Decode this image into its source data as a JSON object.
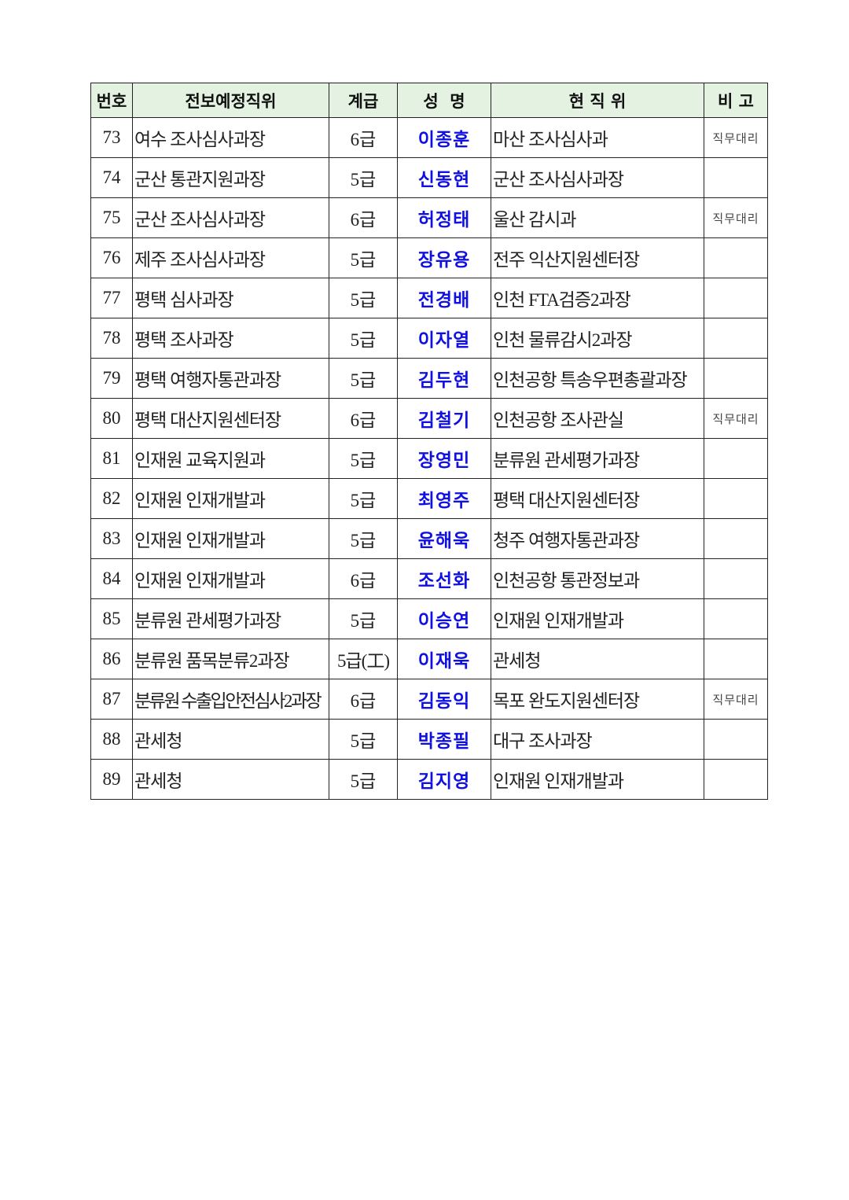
{
  "table": {
    "headers": {
      "no": "번호",
      "new_position": "전보예정직위",
      "grade": "계급",
      "name": "성  명",
      "current_position": "현 직 위",
      "note": "비 고"
    },
    "header_bg": "#e3f2e1",
    "name_color": "#1010e0",
    "rows": [
      {
        "no": "73",
        "new_position": "여수 조사심사과장",
        "grade": "6급",
        "name": "이종훈",
        "current_position": "마산 조사심사과",
        "note": "직무대리"
      },
      {
        "no": "74",
        "new_position": "군산 통관지원과장",
        "grade": "5급",
        "name": "신동현",
        "current_position": "군산 조사심사과장",
        "note": ""
      },
      {
        "no": "75",
        "new_position": "군산 조사심사과장",
        "grade": "6급",
        "name": "허정태",
        "current_position": "울산 감시과",
        "note": "직무대리"
      },
      {
        "no": "76",
        "new_position": "제주 조사심사과장",
        "grade": "5급",
        "name": "장유용",
        "current_position": "전주 익산지원센터장",
        "note": ""
      },
      {
        "no": "77",
        "new_position": "평택 심사과장",
        "grade": "5급",
        "name": "전경배",
        "current_position": "인천 FTA검증2과장",
        "note": ""
      },
      {
        "no": "78",
        "new_position": "평택 조사과장",
        "grade": "5급",
        "name": "이자열",
        "current_position": "인천 물류감시2과장",
        "note": ""
      },
      {
        "no": "79",
        "new_position": "평택 여행자통관과장",
        "grade": "5급",
        "name": "김두현",
        "current_position": "인천공항 특송우편총괄과장",
        "note": ""
      },
      {
        "no": "80",
        "new_position": "평택 대산지원센터장",
        "grade": "6급",
        "name": "김철기",
        "current_position": "인천공항 조사관실",
        "note": "직무대리"
      },
      {
        "no": "81",
        "new_position": "인재원 교육지원과",
        "grade": "5급",
        "name": "장영민",
        "current_position": "분류원 관세평가과장",
        "note": ""
      },
      {
        "no": "82",
        "new_position": "인재원 인재개발과",
        "grade": "5급",
        "name": "최영주",
        "current_position": "평택 대산지원센터장",
        "note": ""
      },
      {
        "no": "83",
        "new_position": "인재원 인재개발과",
        "grade": "5급",
        "name": "윤해욱",
        "current_position": "청주 여행자통관과장",
        "note": ""
      },
      {
        "no": "84",
        "new_position": "인재원 인재개발과",
        "grade": "6급",
        "name": "조선화",
        "current_position": "인천공항 통관정보과",
        "note": ""
      },
      {
        "no": "85",
        "new_position": "분류원 관세평가과장",
        "grade": "5급",
        "name": "이승연",
        "current_position": "인재원 인재개발과",
        "note": ""
      },
      {
        "no": "86",
        "new_position": "분류원 품목분류2과장",
        "grade": "5급(工)",
        "name": "이재욱",
        "current_position": "관세청",
        "note": ""
      },
      {
        "no": "87",
        "new_position": "분류원 수출입안전심사2과장",
        "grade": "6급",
        "name": "김동익",
        "current_position": "목포 완도지원센터장",
        "note": "직무대리"
      },
      {
        "no": "88",
        "new_position": "관세청",
        "grade": "5급",
        "name": "박종필",
        "current_position": "대구 조사과장",
        "note": ""
      },
      {
        "no": "89",
        "new_position": "관세청",
        "grade": "5급",
        "name": "김지영",
        "current_position": "인재원 인재개발과",
        "note": ""
      }
    ]
  }
}
